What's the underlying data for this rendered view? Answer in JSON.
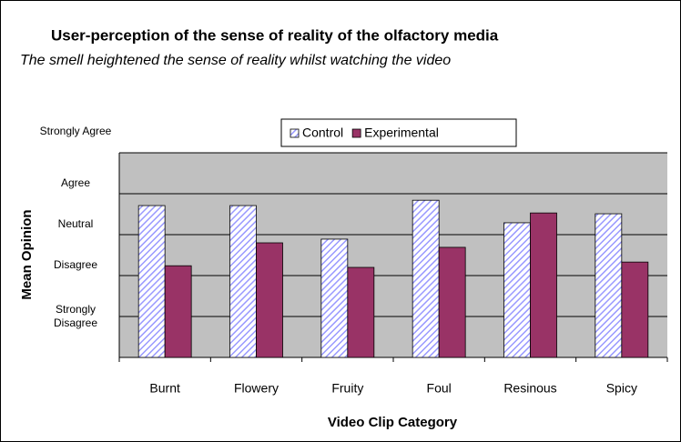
{
  "chart_data": {
    "type": "bar",
    "title": "User-perception of the sense of reality of the olfactory media",
    "subtitle": "The smell heightened the sense of reality whilst watching the video",
    "x_label": "Video Clip Category",
    "y_label": "Mean Opinion",
    "categories": [
      "Burnt",
      "Flowery",
      "Fruity",
      "Foul",
      "Resinous",
      "Spicy"
    ],
    "series": [
      {
        "name": "Control",
        "color": "#9999ff",
        "values": [
          3.71,
          3.71,
          2.89,
          3.84,
          3.29,
          3.51
        ]
      },
      {
        "name": "Experimental",
        "color": "#993366",
        "values": [
          2.24,
          2.8,
          2.2,
          2.69,
          3.53,
          2.33
        ]
      }
    ],
    "ylim": [
      0,
      5
    ],
    "yticks": [
      {
        "value": 1,
        "label": "Strongly Disagree"
      },
      {
        "value": 2,
        "label": "Disagree"
      },
      {
        "value": 3,
        "label": "Neutral"
      },
      {
        "value": 4,
        "label": "Agree"
      },
      {
        "value": 5,
        "label": "Strongly Agree"
      }
    ],
    "grid": true,
    "legend": "top",
    "plot_background": "#c0c0c0"
  }
}
